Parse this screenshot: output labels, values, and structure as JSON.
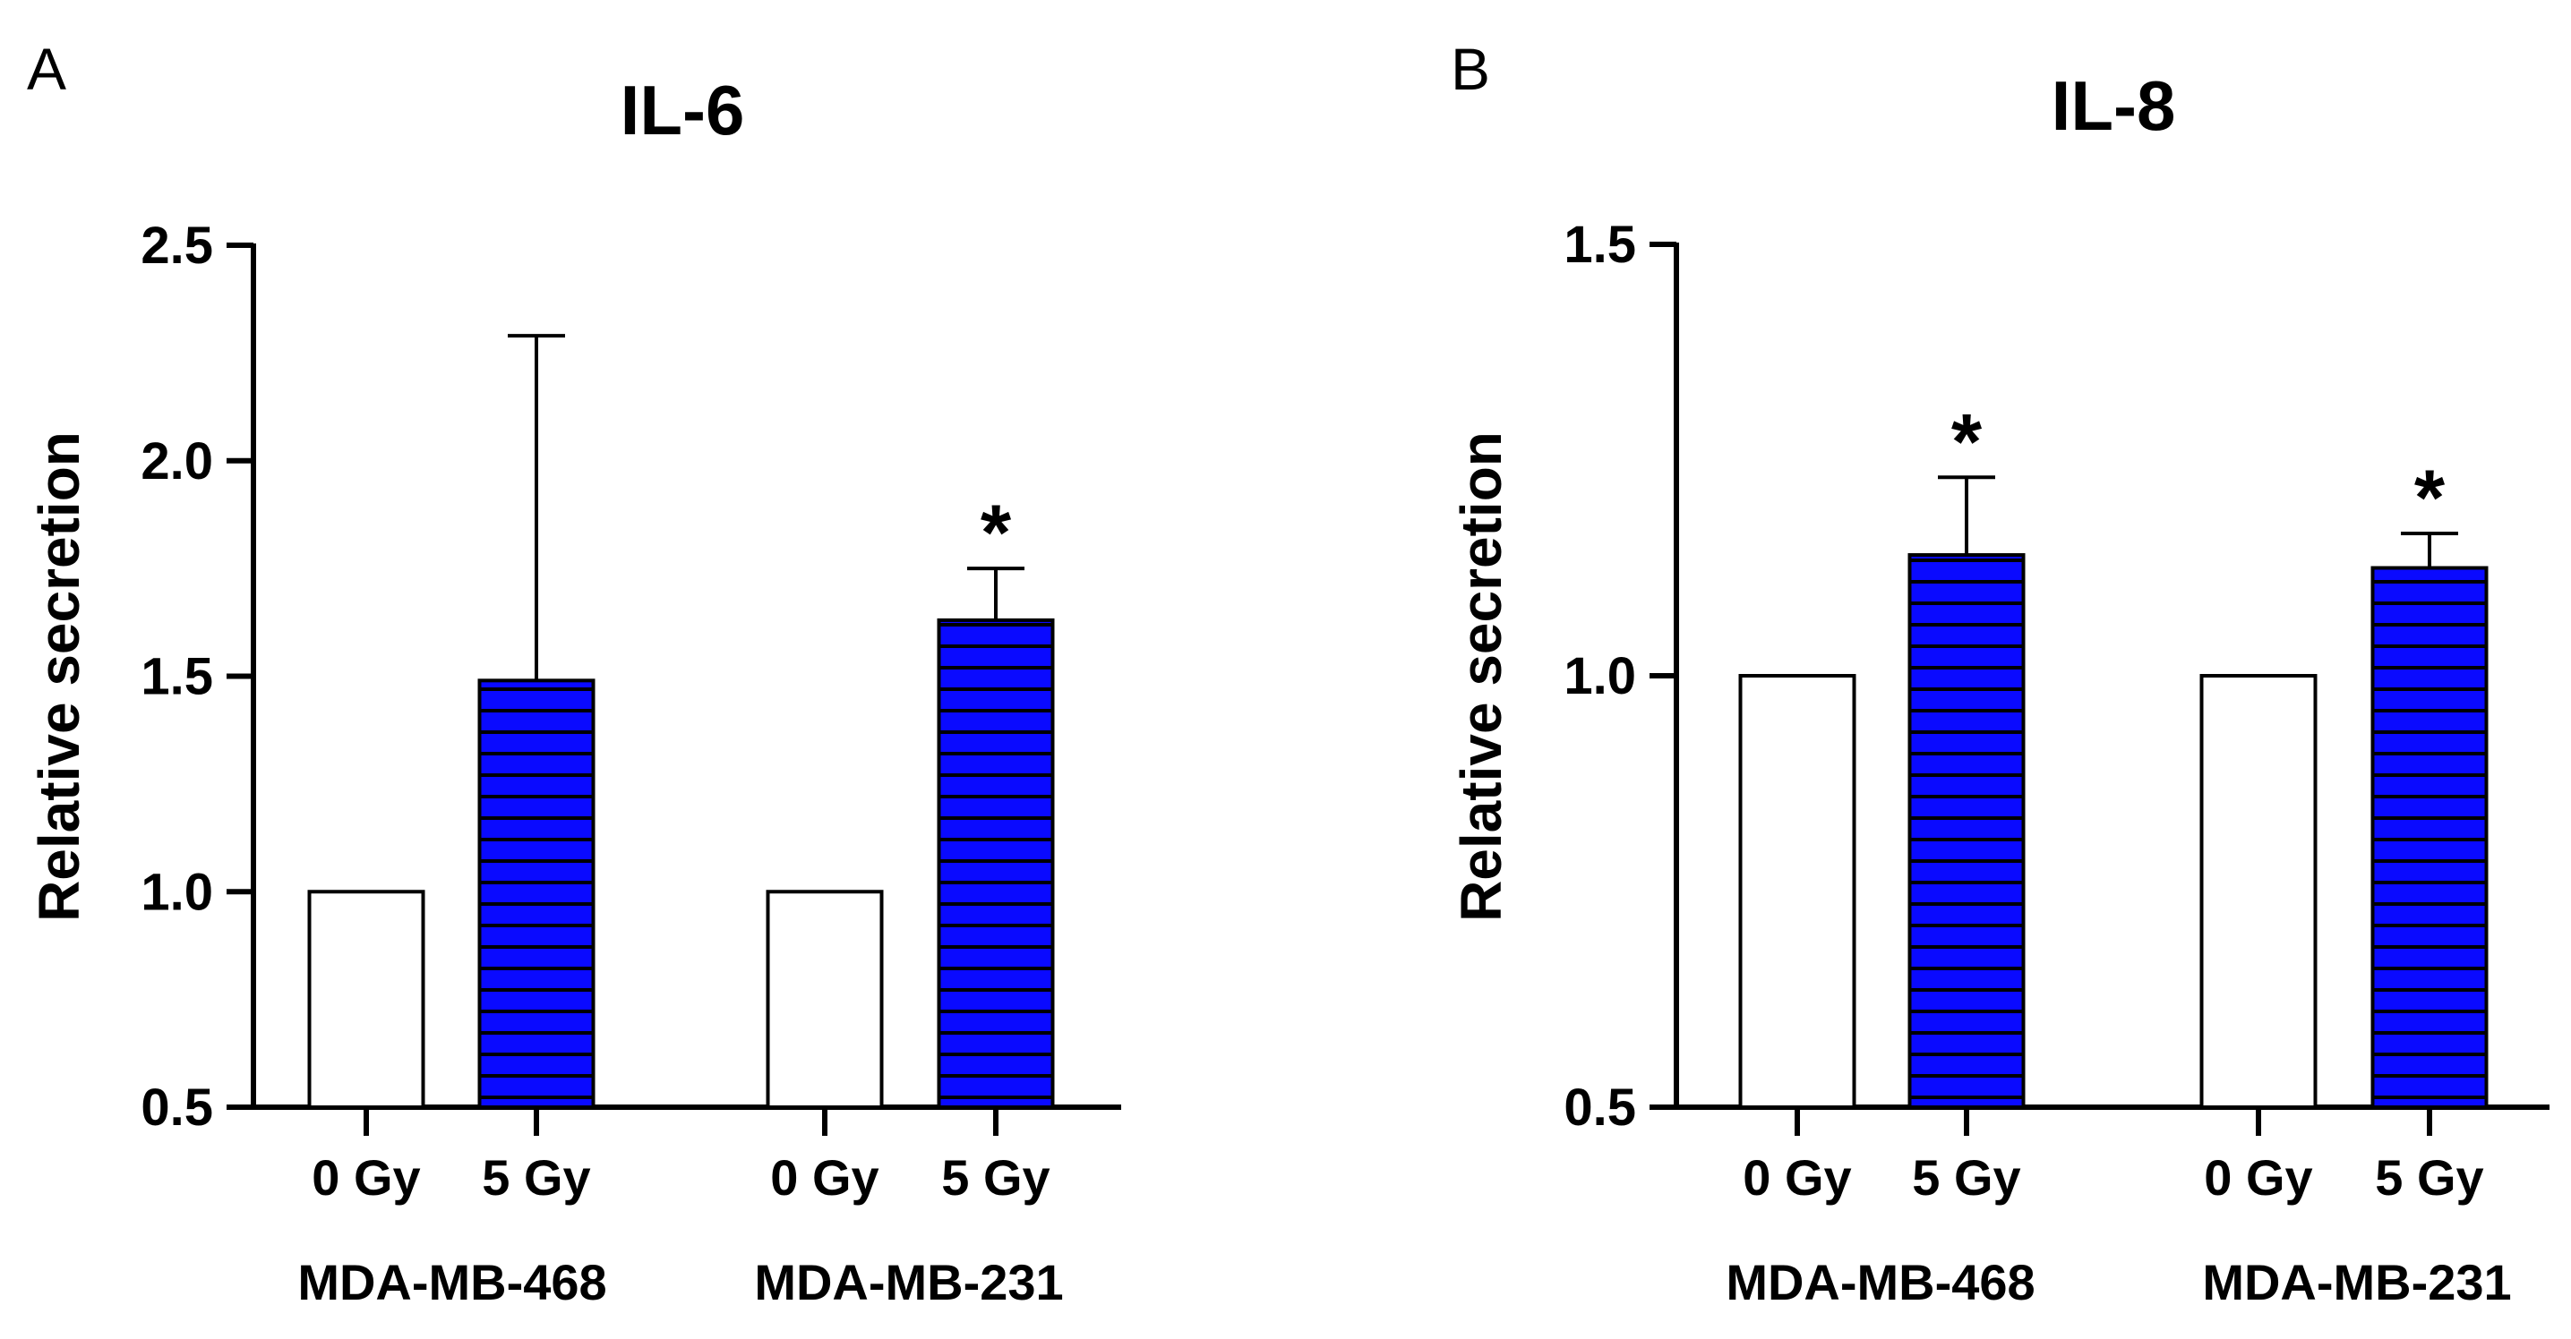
{
  "colors": {
    "irradiated_fill": "#0a0aff",
    "control_fill": "#ffffff",
    "stroke": "#000000",
    "hatch": "#000000"
  },
  "chart_data": [
    {
      "panel": "A",
      "type": "bar",
      "title": "IL-6",
      "ylabel": "Relative secretion",
      "ylim": [
        0.5,
        2.5
      ],
      "yticks": [
        "0.5",
        "1.0",
        "1.5",
        "2.0",
        "2.5"
      ],
      "groups": [
        "MDA-MB-468",
        "MDA-MB-231"
      ],
      "categories": [
        "0 Gy",
        "5 Gy"
      ],
      "series": [
        {
          "group": "MDA-MB-468",
          "category": "0 Gy",
          "value": 1.0,
          "error": 0,
          "significant": false
        },
        {
          "group": "MDA-MB-468",
          "category": "5 Gy",
          "value": 1.49,
          "error": 0.8,
          "significant": false
        },
        {
          "group": "MDA-MB-231",
          "category": "0 Gy",
          "value": 1.0,
          "error": 0,
          "significant": false
        },
        {
          "group": "MDA-MB-231",
          "category": "5 Gy",
          "value": 1.63,
          "error": 0.12,
          "significant": true
        }
      ],
      "significance_marker": "*"
    },
    {
      "panel": "B",
      "type": "bar",
      "title": "IL-8",
      "ylabel": "Relative secretion",
      "ylim": [
        0.5,
        1.5
      ],
      "yticks": [
        "0.5",
        "1.0",
        "1.5"
      ],
      "groups": [
        "MDA-MB-468",
        "MDA-MB-231"
      ],
      "categories": [
        "0 Gy",
        "5 Gy"
      ],
      "series": [
        {
          "group": "MDA-MB-468",
          "category": "0 Gy",
          "value": 1.0,
          "error": 0,
          "significant": false
        },
        {
          "group": "MDA-MB-468",
          "category": "5 Gy",
          "value": 1.14,
          "error": 0.09,
          "significant": true
        },
        {
          "group": "MDA-MB-231",
          "category": "0 Gy",
          "value": 1.0,
          "error": 0,
          "significant": false
        },
        {
          "group": "MDA-MB-231",
          "category": "5 Gy",
          "value": 1.125,
          "error": 0.04,
          "significant": true
        }
      ],
      "significance_marker": "*"
    }
  ]
}
